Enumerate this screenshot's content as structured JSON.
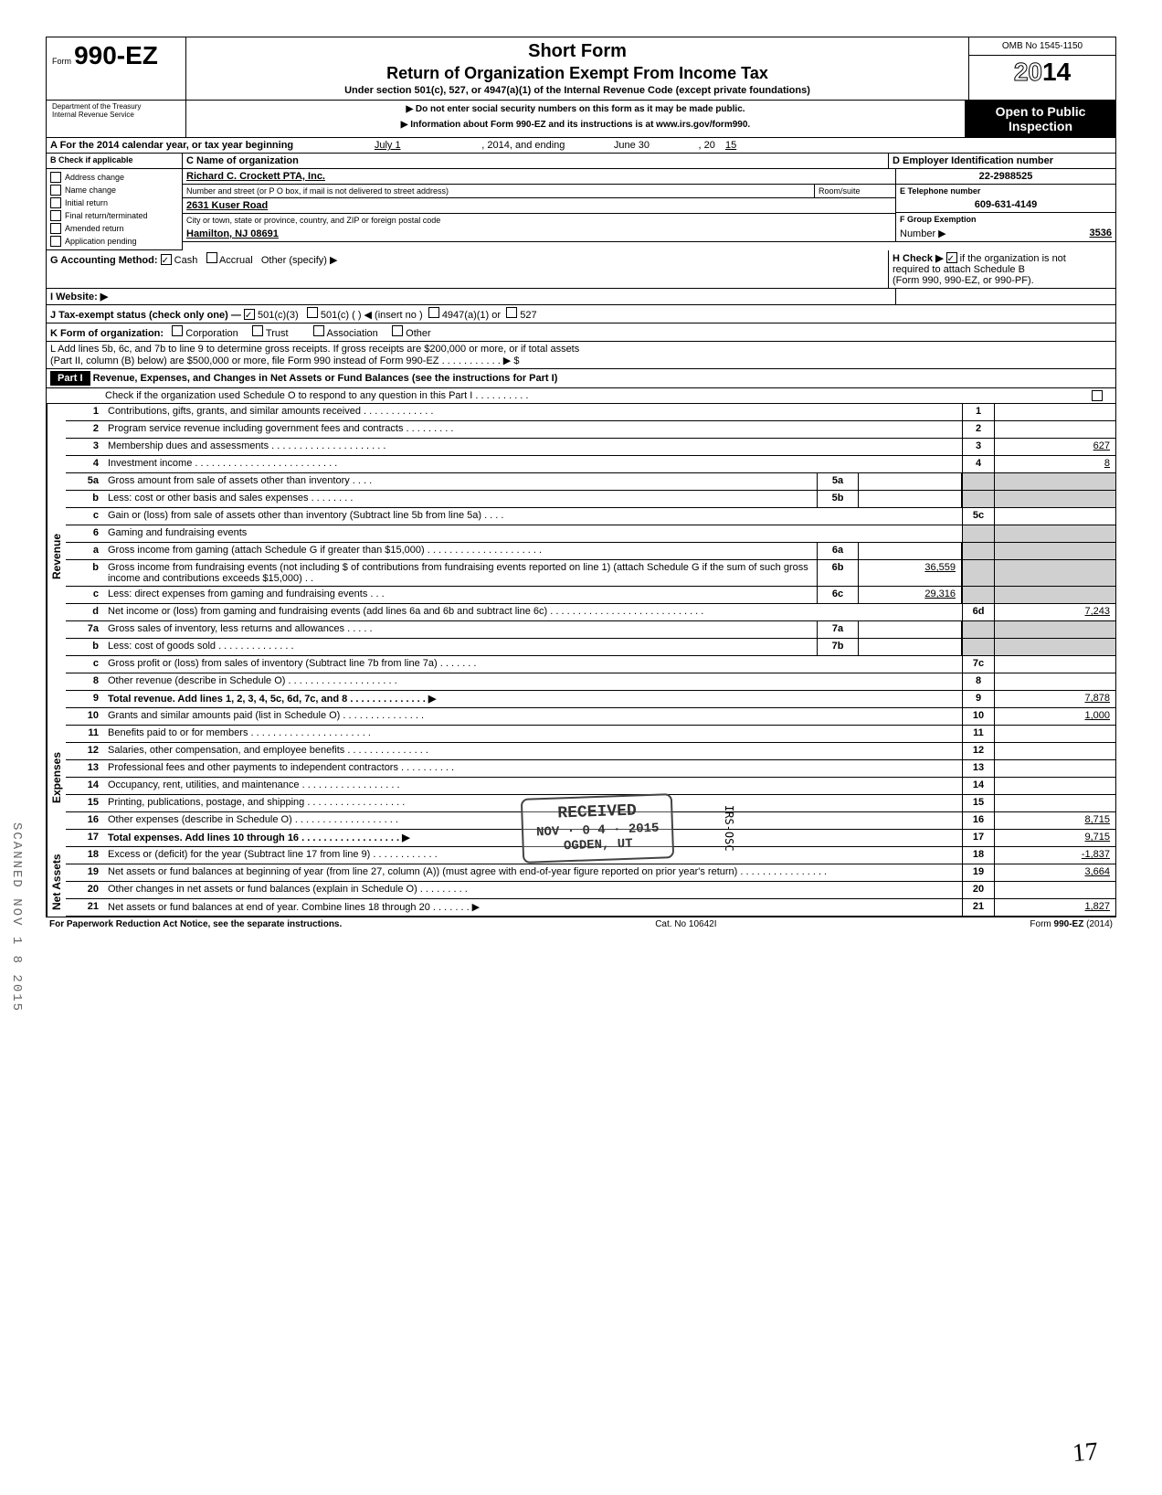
{
  "omb": "OMB No 1545-1150",
  "form_prefix": "Form",
  "form_number": "990-EZ",
  "year": "2014",
  "short_form": "Short Form",
  "return_title": "Return of Organization Exempt From Income Tax",
  "under_section": "Under section 501(c), 527, or 4947(a)(1) of the Internal Revenue Code (except private foundations)",
  "no_ssn": "▶ Do not enter social security numbers on this form as it may be made public.",
  "info_about": "▶ Information about Form 990-EZ and its instructions is at www.irs.gov/form990.",
  "dept": "Department of the Treasury",
  "irs": "Internal Revenue Service",
  "open_public_1": "Open to Public",
  "open_public_2": "Inspection",
  "line_a": "A  For the 2014 calendar year, or tax year beginning",
  "tax_begin": "July 1",
  "tax_mid": ", 2014, and ending",
  "tax_end_month": "June 30",
  "tax_end_year_label": ", 20",
  "tax_end_year": "15",
  "b_label": "B  Check if applicable",
  "b_items": [
    "Address change",
    "Name change",
    "Initial return",
    "Final return/terminated",
    "Amended return",
    "Application pending"
  ],
  "c_label": "C  Name of organization",
  "org_name": "Richard C. Crockett PTA, Inc.",
  "c_addr_label": "Number and street (or P O  box, if mail is not delivered to street address)",
  "room_label": "Room/suite",
  "street": "2631 Kuser Road",
  "c_city_label": "City or town, state or province, country, and ZIP or foreign postal code",
  "city": "Hamilton, NJ 08691",
  "d_label": "D Employer Identification number",
  "ein": "22-2988525",
  "e_label": "E  Telephone number",
  "phone": "609-631-4149",
  "f_label": "F  Group Exemption",
  "f_label2": "Number ▶",
  "group_num": "3536",
  "g_label": "G  Accounting Method:",
  "g_cash": "Cash",
  "g_accrual": "Accrual",
  "g_other": "Other (specify) ▶",
  "h_label": "H  Check ▶",
  "h_text": "if the organization is not",
  "h_text2": "required to attach Schedule B",
  "h_text3": "(Form 990, 990-EZ, or 990-PF).",
  "i_label": "I  Website: ▶",
  "j_label": "J  Tax-exempt status (check only one) —",
  "j_501c3": "501(c)(3)",
  "j_501c": "501(c) (",
  "j_insert": ") ◀ (insert no )",
  "j_4947": "4947(a)(1) or",
  "j_527": "527",
  "k_label": "K  Form of organization:",
  "k_corp": "Corporation",
  "k_trust": "Trust",
  "k_assoc": "Association",
  "k_other": "Other",
  "l_text": "L  Add lines 5b, 6c, and 7b to line 9 to determine gross receipts. If gross receipts are $200,000 or more, or if total assets",
  "l_text2": "(Part II, column (B) below) are $500,000 or more, file Form 990 instead of Form 990-EZ . . . . . . . . . . . ▶  $",
  "part1_label": "Part I",
  "part1_title": "Revenue, Expenses, and Changes in Net Assets or Fund Balances (see the instructions for Part I)",
  "part1_check": "Check if the organization used Schedule O to respond to any question in this Part I . . . . . . . . . .",
  "revenue_label": "Revenue",
  "expenses_label": "Expenses",
  "netassets_label": "Net Assets",
  "lines": {
    "1": {
      "desc": "Contributions, gifts, grants, and similar amounts received . . . . . . . . . . . . .",
      "ref": "1"
    },
    "2": {
      "desc": "Program service revenue including government fees and contracts  . . . . . . . . .",
      "ref": "2"
    },
    "3": {
      "desc": "Membership dues and assessments . . . . . . . . . . . . . . . . . . . . .",
      "ref": "3",
      "val": "627"
    },
    "4": {
      "desc": "Investment income  . . . . . . . . . . . . . . . . . . . . . . . . . .",
      "ref": "4",
      "val": "8"
    },
    "5a": {
      "desc": "Gross amount from sale of assets other than inventory  . . . .",
      "sub": "5a"
    },
    "5b": {
      "desc": "Less: cost or other basis and sales expenses . . . . . . . .",
      "sub": "5b"
    },
    "5c": {
      "desc": "Gain or (loss) from sale of assets other than inventory (Subtract line 5b from line 5a) . . . .",
      "ref": "5c"
    },
    "6": {
      "desc": "Gaming and fundraising events"
    },
    "6a": {
      "desc": "Gross income from gaming (attach Schedule G if greater than $15,000) . . . . . . . . . . . . . . . . . . . . .",
      "sub": "6a"
    },
    "6b": {
      "desc": "Gross income from fundraising events (not including  $               of contributions from fundraising events reported on line 1) (attach Schedule G if the sum of such gross income and contributions exceeds $15,000) . .",
      "sub": "6b",
      "subval": "36,559"
    },
    "6c": {
      "desc": "Less: direct expenses from gaming and fundraising events  . . .",
      "sub": "6c",
      "subval": "29,316"
    },
    "6d": {
      "desc": "Net income or (loss) from gaming and fundraising events (add lines 6a and 6b and subtract line 6c)  . . . . . . . . . . . . . . . . . . . . . . . . . . . .",
      "ref": "6d",
      "val": "7,243"
    },
    "7a": {
      "desc": "Gross sales of inventory, less returns and allowances . . . . .",
      "sub": "7a"
    },
    "7b": {
      "desc": "Less: cost of goods sold  . . . . . . . . . . . . . .",
      "sub": "7b"
    },
    "7c": {
      "desc": "Gross profit or (loss) from sales of inventory (Subtract line 7b from line 7a) . . . . . . .",
      "ref": "7c"
    },
    "8": {
      "desc": "Other revenue (describe in Schedule O) . . . . . . . . . . . . . . . . . . . .",
      "ref": "8"
    },
    "9": {
      "desc": "Total revenue. Add lines 1, 2, 3, 4, 5c, 6d, 7c, and 8 . . . . . . . . . . . . . . ▶",
      "ref": "9",
      "val": "7,878",
      "bold": true
    },
    "10": {
      "desc": "Grants and similar amounts paid (list in Schedule O)  . . . . . . . . . . . . . . .",
      "ref": "10",
      "val": "1,000"
    },
    "11": {
      "desc": "Benefits paid to or for members  . . . . . . . . . . . . . . . . . . . . . .",
      "ref": "11"
    },
    "12": {
      "desc": "Salaries, other compensation, and employee benefits . . . . . . . . . . . . . . .",
      "ref": "12"
    },
    "13": {
      "desc": "Professional fees and other payments to independent contractors . . . . . . . . . .",
      "ref": "13"
    },
    "14": {
      "desc": "Occupancy, rent, utilities, and maintenance  . . . . . . . . . . . . . . . . . .",
      "ref": "14"
    },
    "15": {
      "desc": "Printing, publications, postage, and shipping . . . . . . . . . . . . . . . . . .",
      "ref": "15"
    },
    "16": {
      "desc": "Other expenses (describe in Schedule O) . . . . . . . . . . . . . . . . . . .",
      "ref": "16",
      "val": "8,715"
    },
    "17": {
      "desc": "Total expenses. Add lines 10 through 16  . . . . . . . . . . . . . . . . . . ▶",
      "ref": "17",
      "val": "9,715",
      "bold": true
    },
    "18": {
      "desc": "Excess or (deficit) for the year (Subtract line 17 from line 9)  . . . . . . . . . . . .",
      "ref": "18",
      "val": "-1,837"
    },
    "19": {
      "desc": "Net assets or fund balances at beginning of year (from line 27, column (A)) (must agree with end-of-year figure reported on prior year's return)  . . . . . . . . . . . . . . . .",
      "ref": "19",
      "val": "3,664"
    },
    "20": {
      "desc": "Other changes in net assets or fund balances (explain in Schedule O) . . . . . . . . .",
      "ref": "20"
    },
    "21": {
      "desc": "Net assets or fund balances at end of year. Combine lines 18 through 20 . . . . . . . ▶",
      "ref": "21",
      "val": "1,827"
    }
  },
  "footer_left": "For Paperwork Reduction Act Notice, see the separate instructions.",
  "footer_mid": "Cat. No  10642I",
  "footer_right": "Form 990-EZ (2014)",
  "stamp_received": "RECEIVED",
  "stamp_date": "NOV · 0 4 · 2015",
  "stamp_location": "OGDEN, UT",
  "stamp_irs": "IRS-OSC",
  "sidestamp": "SCANNED NOV 1 8 2015",
  "handwritten": "17"
}
